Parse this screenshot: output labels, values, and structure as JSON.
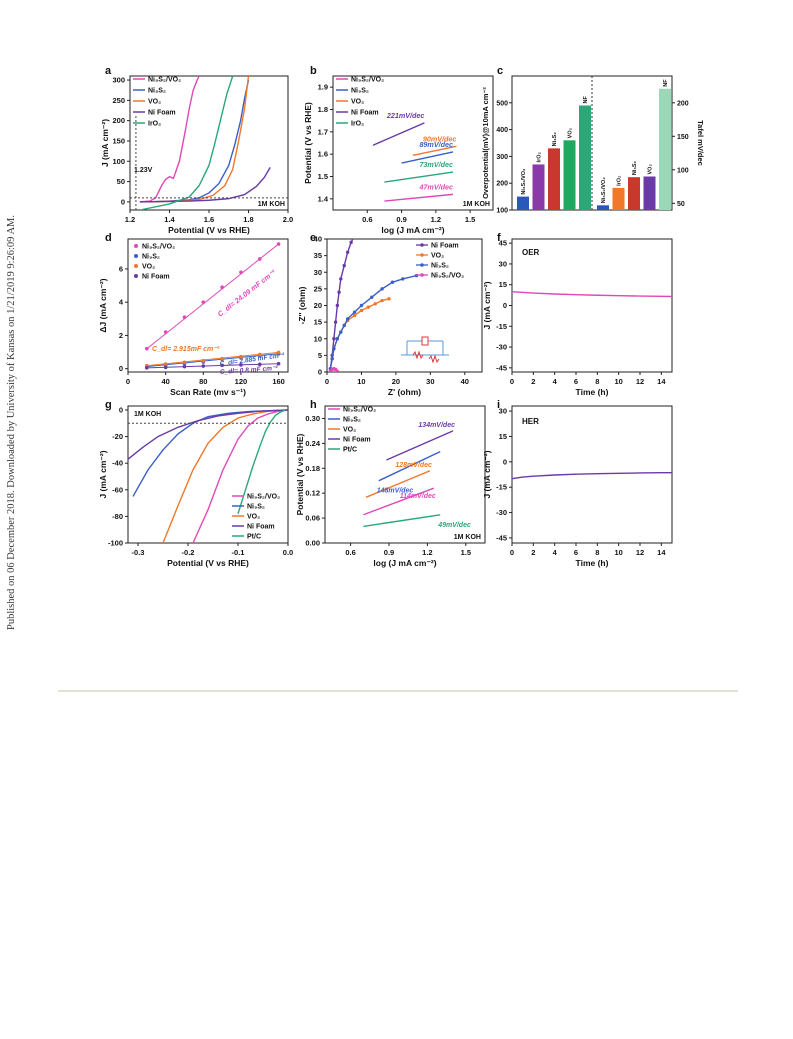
{
  "watermark": "Published on 06 December 2018. Downloaded by University of Kansas on 1/21/2019 9:26:09 AM.",
  "colors": {
    "ni3s2vo2": "#e048b8",
    "ni3s2": "#3a5fc8",
    "vo2": "#f07828",
    "nifoam": "#6a3aa8",
    "iro2": "#28a878",
    "ptc": "#28a878",
    "c_ni3s2vo2": "#2a58b8",
    "c_iro2": "#8a3aa8",
    "c_ni3s2": "#c8382c",
    "c_vo2": "#1ea860",
    "c_nf": "#2aa878",
    "c_nf2": "#9ad8b8"
  },
  "chart_data": [
    {
      "panel": "a",
      "type": "line",
      "xlabel": "Potential (V vs RHE)",
      "ylabel": "J (mA cm⁻²)",
      "xlim": [
        1.2,
        2.0
      ],
      "ylim": [
        -20,
        310
      ],
      "xticks": [
        "1.2",
        "1.4",
        "1.6",
        "1.8",
        "2.0"
      ],
      "yticks": [
        "0",
        "50",
        "100",
        "150",
        "200",
        "250",
        "300"
      ],
      "annotations": [
        "1.23V",
        "1M KOH"
      ],
      "series": [
        {
          "name": "Ni₃S₂/VO₂",
          "color": "ni3s2vo2",
          "x": [
            1.25,
            1.3,
            1.33,
            1.36,
            1.38,
            1.4,
            1.42,
            1.45,
            1.48,
            1.5,
            1.52,
            1.54,
            1.55
          ],
          "y": [
            0,
            2,
            10,
            40,
            55,
            62,
            58,
            100,
            175,
            230,
            275,
            300,
            310
          ]
        },
        {
          "name": "Ni₃S₂",
          "color": "ni3s2",
          "x": [
            1.3,
            1.4,
            1.5,
            1.55,
            1.6,
            1.65,
            1.7,
            1.73,
            1.76,
            1.78,
            1.8
          ],
          "y": [
            0,
            2,
            5,
            10,
            22,
            45,
            90,
            140,
            200,
            255,
            300
          ]
        },
        {
          "name": "VO₂",
          "color": "vo2",
          "x": [
            1.3,
            1.45,
            1.55,
            1.62,
            1.68,
            1.72,
            1.75,
            1.78,
            1.8
          ],
          "y": [
            0,
            2,
            6,
            16,
            40,
            80,
            150,
            230,
            310
          ]
        },
        {
          "name": "Ni Foam",
          "color": "nifoam",
          "x": [
            1.25,
            1.4,
            1.5,
            1.6,
            1.7,
            1.78,
            1.84,
            1.88,
            1.91
          ],
          "y": [
            0,
            1,
            2,
            4,
            8,
            18,
            38,
            60,
            85
          ]
        },
        {
          "name": "IrO₂",
          "color": "iro2",
          "x": [
            1.25,
            1.4,
            1.5,
            1.55,
            1.6,
            1.63,
            1.66,
            1.69,
            1.72
          ],
          "y": [
            -20,
            -5,
            12,
            40,
            90,
            145,
            205,
            265,
            310
          ]
        }
      ]
    },
    {
      "panel": "b",
      "type": "line",
      "xlabel": "log (J mA cm⁻²)",
      "ylabel": "Potential (V vs RHE)",
      "xlim": [
        0.3,
        1.7
      ],
      "ylim": [
        1.35,
        1.95
      ],
      "xticks": [
        "0.6",
        "0.9",
        "1.2",
        "1.5"
      ],
      "yticks": [
        "1.4",
        "1.5",
        "1.6",
        "1.7",
        "1.8",
        "1.9"
      ],
      "annotations": [
        "1M KOH"
      ],
      "series": [
        {
          "name": "Ni₃S₂/VO₂",
          "color": "ni3s2vo2",
          "slope": "47mV/dec",
          "x": [
            0.75,
            1.35
          ],
          "y": [
            1.39,
            1.42
          ]
        },
        {
          "name": "Ni₃S₂",
          "color": "ni3s2",
          "slope": "89mV/dec",
          "x": [
            0.9,
            1.35
          ],
          "y": [
            1.56,
            1.61
          ]
        },
        {
          "name": "VO₂",
          "color": "vo2",
          "slope": "90mV/dec",
          "x": [
            1.0,
            1.38
          ],
          "y": [
            1.595,
            1.635
          ]
        },
        {
          "name": "Ni Foam",
          "color": "nifoam",
          "slope": "221mV/dec",
          "x": [
            0.65,
            1.1
          ],
          "y": [
            1.64,
            1.74
          ]
        },
        {
          "name": "IrO₂",
          "color": "iro2",
          "slope": "73mV/dec",
          "x": [
            0.75,
            1.35
          ],
          "y": [
            1.475,
            1.52
          ]
        }
      ]
    },
    {
      "panel": "c",
      "type": "bar",
      "ylabel": "Overpotential(mV)@10mA cm⁻²",
      "ylabel2": "Tafel mV/dec",
      "ylim": [
        100,
        600
      ],
      "ylim2": [
        40,
        240
      ],
      "yticks": [
        "100",
        "200",
        "300",
        "400",
        "500"
      ],
      "yticks2": [
        "50",
        "100",
        "150",
        "200"
      ],
      "groups": [
        {
          "axis": "left",
          "categories": [
            "Ni₃S₂/VO₂",
            "IrO₂",
            "Ni₃S₂",
            "VO₂",
            "NF"
          ],
          "values": [
            150,
            270,
            330,
            360,
            490
          ],
          "colors": [
            "c_ni3s2vo2",
            "c_iro2",
            "c_ni3s2",
            "c_vo2",
            "c_nf"
          ]
        },
        {
          "axis": "right",
          "categories": [
            "Ni₃S₂/VO₂",
            "IrO₂",
            "Ni₃S₂",
            "VO₂",
            "NF"
          ],
          "values": [
            47,
            73,
            89,
            90,
            221
          ],
          "colors": [
            "c_ni3s2vo2",
            "vo2",
            "c_ni3s2",
            "nifoam",
            "c_nf2"
          ]
        }
      ]
    },
    {
      "panel": "d",
      "type": "scatter",
      "xlabel": "Scan Rate (mv s⁻¹)",
      "ylabel": "ΔJ (mA cm⁻²)",
      "xlim": [
        0,
        170
      ],
      "ylim": [
        -0.2,
        7.8
      ],
      "xticks": [
        "0",
        "40",
        "80",
        "120",
        "160"
      ],
      "yticks": [
        "0",
        "2",
        "4",
        "6"
      ],
      "annotations": [
        "C_dl= 24.09 mF cm⁻²",
        "C_dl= 2.915mF cm⁻²",
        "C_dl= 2.885 mF cm⁻²",
        "C_dl= 0.8 mF cm⁻²"
      ],
      "x": [
        20,
        40,
        60,
        80,
        100,
        120,
        140,
        160
      ],
      "series": [
        {
          "name": "Ni₃S₂/VO₂",
          "color": "ni3s2vo2",
          "values": [
            1.2,
            2.2,
            3.1,
            4.0,
            4.9,
            5.8,
            6.6,
            7.5
          ]
        },
        {
          "name": "Ni₃S₂",
          "color": "ni3s2",
          "values": [
            0.12,
            0.2,
            0.3,
            0.4,
            0.55,
            0.65,
            0.78,
            0.9
          ]
        },
        {
          "name": "VO₂",
          "color": "vo2",
          "values": [
            0.18,
            0.28,
            0.38,
            0.48,
            0.6,
            0.72,
            0.85,
            0.98
          ]
        },
        {
          "name": "Ni Foam",
          "color": "nifoam",
          "values": [
            0.05,
            0.08,
            0.12,
            0.16,
            0.2,
            0.23,
            0.26,
            0.3
          ]
        }
      ]
    },
    {
      "panel": "e",
      "type": "scatter",
      "xlabel": "Z' (ohm)",
      "ylabel": "-Z'' (ohm)",
      "xlim": [
        0,
        45
      ],
      "ylim": [
        0,
        40
      ],
      "xticks": [
        "0",
        "10",
        "20",
        "30",
        "40"
      ],
      "yticks": [
        "0",
        "5",
        "10",
        "15",
        "20",
        "25",
        "30",
        "35",
        "40"
      ],
      "series": [
        {
          "name": "Ni Foam",
          "color": "nifoam",
          "x": [
            1,
            1.5,
            2,
            2.5,
            3,
            3.5,
            4,
            5,
            6,
            7,
            8
          ],
          "y": [
            1,
            5,
            10,
            15,
            20,
            24,
            28,
            32,
            36,
            39,
            41
          ]
        },
        {
          "name": "VO₂",
          "color": "vo2",
          "x": [
            1,
            1.5,
            2,
            3,
            4,
            5,
            6,
            8,
            10,
            12,
            14,
            16,
            18
          ],
          "y": [
            1,
            4,
            7,
            10,
            12,
            14,
            15.5,
            17,
            18.5,
            19.5,
            20.5,
            21.5,
            22
          ]
        },
        {
          "name": "Ni₃S₂",
          "color": "ni3s2",
          "x": [
            1,
            1.5,
            2,
            3,
            4,
            5,
            6,
            8,
            10,
            13,
            16,
            19,
            22,
            26
          ],
          "y": [
            1,
            4,
            7,
            10,
            12,
            14,
            16,
            18,
            20,
            22.5,
            25,
            27,
            28,
            29
          ]
        },
        {
          "name": "Ni₃S₂/VO₂",
          "color": "ni3s2vo2",
          "x": [
            1,
            1.5,
            2,
            2.5,
            3
          ],
          "y": [
            0.2,
            0.8,
            1.0,
            0.8,
            0.2
          ]
        }
      ]
    },
    {
      "panel": "f",
      "type": "line",
      "xlabel": "Time (h)",
      "ylabel": "J (mA cm⁻²)",
      "xlim": [
        0,
        15
      ],
      "ylim": [
        -48,
        48
      ],
      "xticks": [
        "0",
        "2",
        "4",
        "6",
        "8",
        "10",
        "12",
        "14"
      ],
      "yticks": [
        "45",
        "30",
        "15",
        "0",
        "-15",
        "-30",
        "-45"
      ],
      "annotations": [
        "OER"
      ],
      "series": [
        {
          "name": "",
          "color": "ni3s2vo2",
          "x": [
            0,
            2,
            4,
            6,
            8,
            10,
            12,
            14,
            15
          ],
          "y": [
            10,
            9,
            8.3,
            7.8,
            7.4,
            7.1,
            6.8,
            6.6,
            6.5
          ]
        }
      ]
    },
    {
      "panel": "g",
      "type": "line",
      "xlabel": "Potential (V vs RHE)",
      "ylabel": "J (mA cm⁻²)",
      "xlim": [
        -0.32,
        0.0
      ],
      "ylim": [
        -100,
        3
      ],
      "xticks": [
        "-0.3",
        "-0.2",
        "-0.1",
        "0.0"
      ],
      "yticks": [
        "0",
        "-20",
        "-40",
        "-60",
        "-80",
        "-100"
      ],
      "annotations": [
        "1M KOH"
      ],
      "series": [
        {
          "name": "Ni₃S₂/VO₂",
          "color": "ni3s2vo2",
          "x": [
            -0.19,
            -0.16,
            -0.13,
            -0.1,
            -0.08,
            -0.06,
            -0.04,
            -0.02,
            0.0
          ],
          "y": [
            -100,
            -75,
            -45,
            -22,
            -12,
            -6,
            -3,
            -1,
            0
          ]
        },
        {
          "name": "Ni₃S₂",
          "color": "ni3s2",
          "x": [
            -0.31,
            -0.28,
            -0.25,
            -0.22,
            -0.19,
            -0.16,
            -0.12,
            -0.08,
            -0.04,
            0.0
          ],
          "y": [
            -65,
            -45,
            -30,
            -18,
            -10,
            -5,
            -2.5,
            -1.2,
            -0.5,
            0
          ]
        },
        {
          "name": "VO₂",
          "color": "vo2",
          "x": [
            -0.25,
            -0.22,
            -0.19,
            -0.16,
            -0.13,
            -0.1,
            -0.07,
            -0.04,
            0.0
          ],
          "y": [
            -100,
            -72,
            -45,
            -25,
            -13,
            -6,
            -3,
            -1,
            0
          ]
        },
        {
          "name": "Ni Foam",
          "color": "nifoam",
          "x": [
            -0.32,
            -0.29,
            -0.26,
            -0.22,
            -0.18,
            -0.14,
            -0.1,
            -0.06,
            -0.02,
            0.0
          ],
          "y": [
            -37,
            -28,
            -20,
            -13,
            -8,
            -4.5,
            -2.5,
            -1,
            -0.3,
            0
          ]
        },
        {
          "name": "Pt/C",
          "color": "ptc",
          "x": [
            -0.1,
            -0.085,
            -0.07,
            -0.055,
            -0.045,
            -0.035,
            -0.025,
            -0.015,
            -0.005
          ],
          "y": [
            -78,
            -60,
            -42,
            -26,
            -16,
            -9,
            -4,
            -1.5,
            0
          ]
        }
      ]
    },
    {
      "panel": "h",
      "type": "line",
      "xlabel": "log (J mA cm⁻²)",
      "ylabel": "Potential (V vs RHE)",
      "xlim": [
        0.4,
        1.65
      ],
      "ylim": [
        0,
        0.33
      ],
      "xticks": [
        "0.6",
        "0.9",
        "1.2",
        "1.5"
      ],
      "yticks": [
        "0.00",
        "0.06",
        "0.12",
        "0.18",
        "0.24",
        "0.30"
      ],
      "annotations": [
        "1M KOH"
      ],
      "series": [
        {
          "name": "Ni₃S₂/VO₂",
          "color": "ni3s2vo2",
          "slope": "114mV/dec",
          "x": [
            0.7,
            1.25
          ],
          "y": [
            0.068,
            0.132
          ]
        },
        {
          "name": "Ni₃S₂",
          "color": "ni3s2",
          "slope": "148mV/dec",
          "x": [
            0.82,
            1.3
          ],
          "y": [
            0.15,
            0.22
          ]
        },
        {
          "name": "VO₂",
          "color": "vo2",
          "slope": "128mV/dec",
          "x": [
            0.72,
            1.22
          ],
          "y": [
            0.11,
            0.174
          ]
        },
        {
          "name": "Ni Foam",
          "color": "nifoam",
          "slope": "134mV/dec",
          "x": [
            0.88,
            1.4
          ],
          "y": [
            0.2,
            0.27
          ]
        },
        {
          "name": "Pt/C",
          "color": "ptc",
          "slope": "49mV/dec",
          "x": [
            0.7,
            1.3
          ],
          "y": [
            0.04,
            0.068
          ]
        }
      ]
    },
    {
      "panel": "i",
      "type": "line",
      "xlabel": "Time (h)",
      "ylabel": "J (mA cm⁻²)",
      "xlim": [
        0,
        15
      ],
      "ylim": [
        -48,
        33
      ],
      "xticks": [
        "0",
        "2",
        "4",
        "6",
        "8",
        "10",
        "12",
        "14"
      ],
      "yticks": [
        "30",
        "15",
        "0",
        "-15",
        "-30",
        "-45"
      ],
      "annotations": [
        "HER"
      ],
      "series": [
        {
          "name": "",
          "color": "nifoam",
          "x": [
            0,
            1,
            2,
            4,
            6,
            8,
            10,
            12,
            14,
            15
          ],
          "y": [
            -10,
            -9,
            -8.5,
            -7.8,
            -7.3,
            -7,
            -6.8,
            -6.6,
            -6.4,
            -6.4
          ]
        }
      ]
    }
  ],
  "panel_e_inset": "equivalent circuit"
}
